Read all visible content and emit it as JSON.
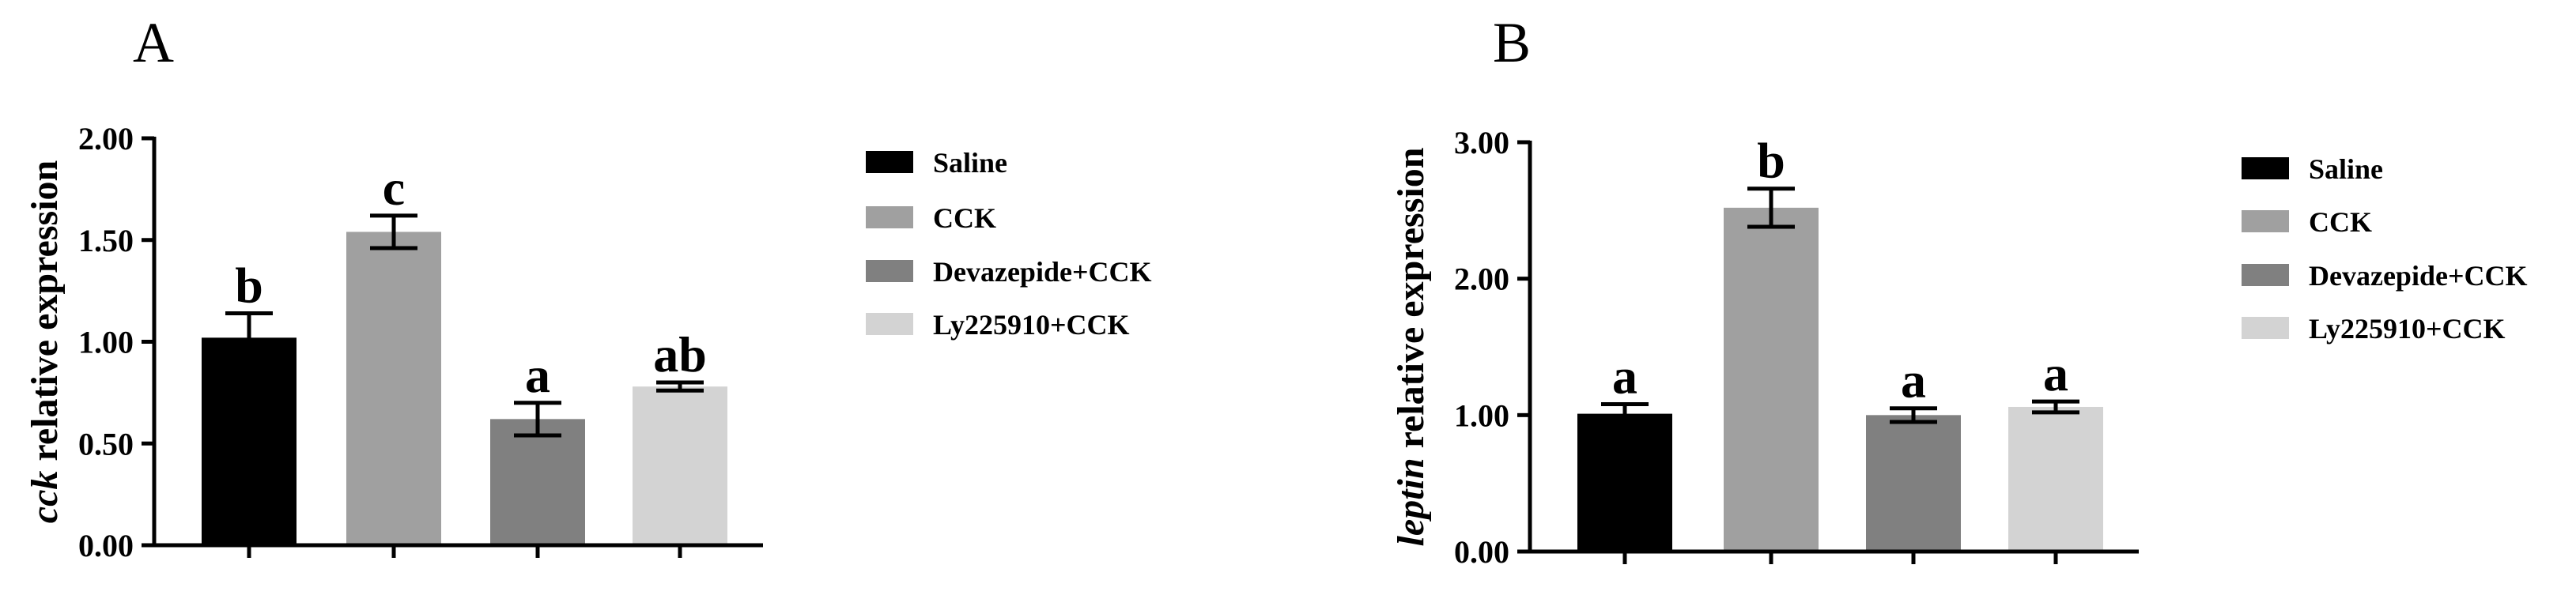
{
  "chart_data": [
    {
      "type": "bar",
      "panel_label": "A",
      "ylabel_gene": "cck",
      "ylabel_rest": " relative expression",
      "ylim": [
        0,
        2.0
      ],
      "yticks": [
        "0.00",
        "0.50",
        "1.00",
        "1.50",
        "2.00"
      ],
      "ytick_values": [
        0,
        0.5,
        1.0,
        1.5,
        2.0
      ],
      "categories": [
        "Saline",
        "CCK",
        "Devazepide+CCK",
        "Ly225910+CCK"
      ],
      "values": [
        1.02,
        1.54,
        0.62,
        0.78
      ],
      "errors": [
        0.12,
        0.08,
        0.08,
        0.02
      ],
      "significance": [
        "b",
        "c",
        "a",
        "ab"
      ],
      "legend": [
        "Saline",
        "CCK",
        "Devazepide+CCK",
        "Ly225910+CCK"
      ],
      "grid": false
    },
    {
      "type": "bar",
      "panel_label": "B",
      "ylabel_gene": "leptin",
      "ylabel_rest": " relative expression",
      "ylim": [
        0,
        3.0
      ],
      "yticks": [
        "0.00",
        "1.00",
        "2.00",
        "3.00"
      ],
      "ytick_values": [
        0,
        1.0,
        2.0,
        3.0
      ],
      "categories": [
        "Saline",
        "CCK",
        "Devazepide+CCK",
        "Ly225910+CCK"
      ],
      "values": [
        1.01,
        2.52,
        1.0,
        1.06
      ],
      "errors": [
        0.07,
        0.14,
        0.05,
        0.04
      ],
      "significance": [
        "a",
        "b",
        "a",
        "a"
      ],
      "legend": [
        "Saline",
        "CCK",
        "Devazepide+CCK",
        "Ly225910+CCK"
      ],
      "grid": false
    }
  ],
  "colors": {
    "series": [
      "#000000",
      "#a0a0a0",
      "#808080",
      "#d3d3d3"
    ],
    "axis": "#000000"
  }
}
